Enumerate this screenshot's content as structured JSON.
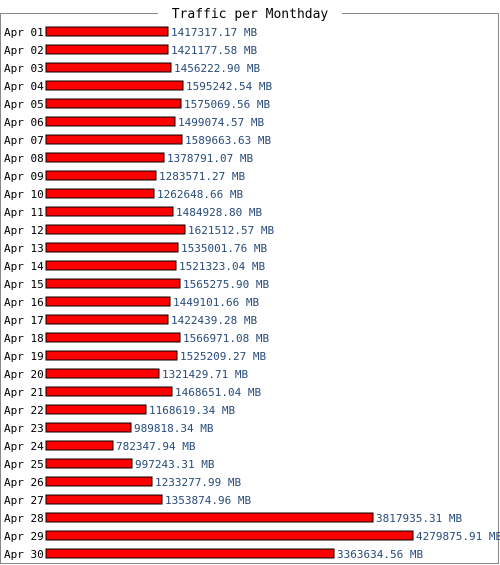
{
  "chart_data": {
    "type": "bar",
    "orientation": "horizontal",
    "title": "Traffic per Monthday",
    "unit": "MB",
    "bar_color": "#ff0000",
    "value_text_color": "#2a4d7c",
    "xlim": [
      0,
      4279875.91
    ],
    "categories": [
      "Apr 01",
      "Apr 02",
      "Apr 03",
      "Apr 04",
      "Apr 05",
      "Apr 06",
      "Apr 07",
      "Apr 08",
      "Apr 09",
      "Apr 10",
      "Apr 11",
      "Apr 12",
      "Apr 13",
      "Apr 14",
      "Apr 15",
      "Apr 16",
      "Apr 17",
      "Apr 18",
      "Apr 19",
      "Apr 20",
      "Apr 21",
      "Apr 22",
      "Apr 23",
      "Apr 24",
      "Apr 25",
      "Apr 26",
      "Apr 27",
      "Apr 28",
      "Apr 29",
      "Apr 30"
    ],
    "values": [
      1417317.17,
      1421177.58,
      1456222.9,
      1595242.54,
      1575069.56,
      1499074.57,
      1589663.63,
      1378791.07,
      1283571.27,
      1262648.66,
      1484928.8,
      1621512.57,
      1535001.76,
      1521323.04,
      1565275.9,
      1449101.66,
      1422439.28,
      1566971.08,
      1525209.27,
      1321429.71,
      1468651.04,
      1168619.34,
      989818.34,
      782347.94,
      997243.31,
      1233277.99,
      1353874.96,
      3817935.31,
      4279875.91,
      3363634.56
    ],
    "value_labels": [
      "1417317.17 MB",
      "1421177.58 MB",
      "1456222.90 MB",
      "1595242.54 MB",
      "1575069.56 MB",
      "1499074.57 MB",
      "1589663.63 MB",
      "1378791.07 MB",
      "1283571.27 MB",
      "1262648.66 MB",
      "1484928.80 MB",
      "1621512.57 MB",
      "1535001.76 MB",
      "1521323.04 MB",
      "1565275.90 MB",
      "1449101.66 MB",
      "1422439.28 MB",
      "1566971.08 MB",
      "1525209.27 MB",
      "1321429.71 MB",
      "1468651.04 MB",
      "1168619.34 MB",
      "989818.34 MB",
      "782347.94 MB",
      "997243.31 MB",
      "1233277.99 MB",
      "1353874.96 MB",
      "3817935.31 MB",
      "4279875.91 MB",
      "3363634.56 MB"
    ]
  }
}
